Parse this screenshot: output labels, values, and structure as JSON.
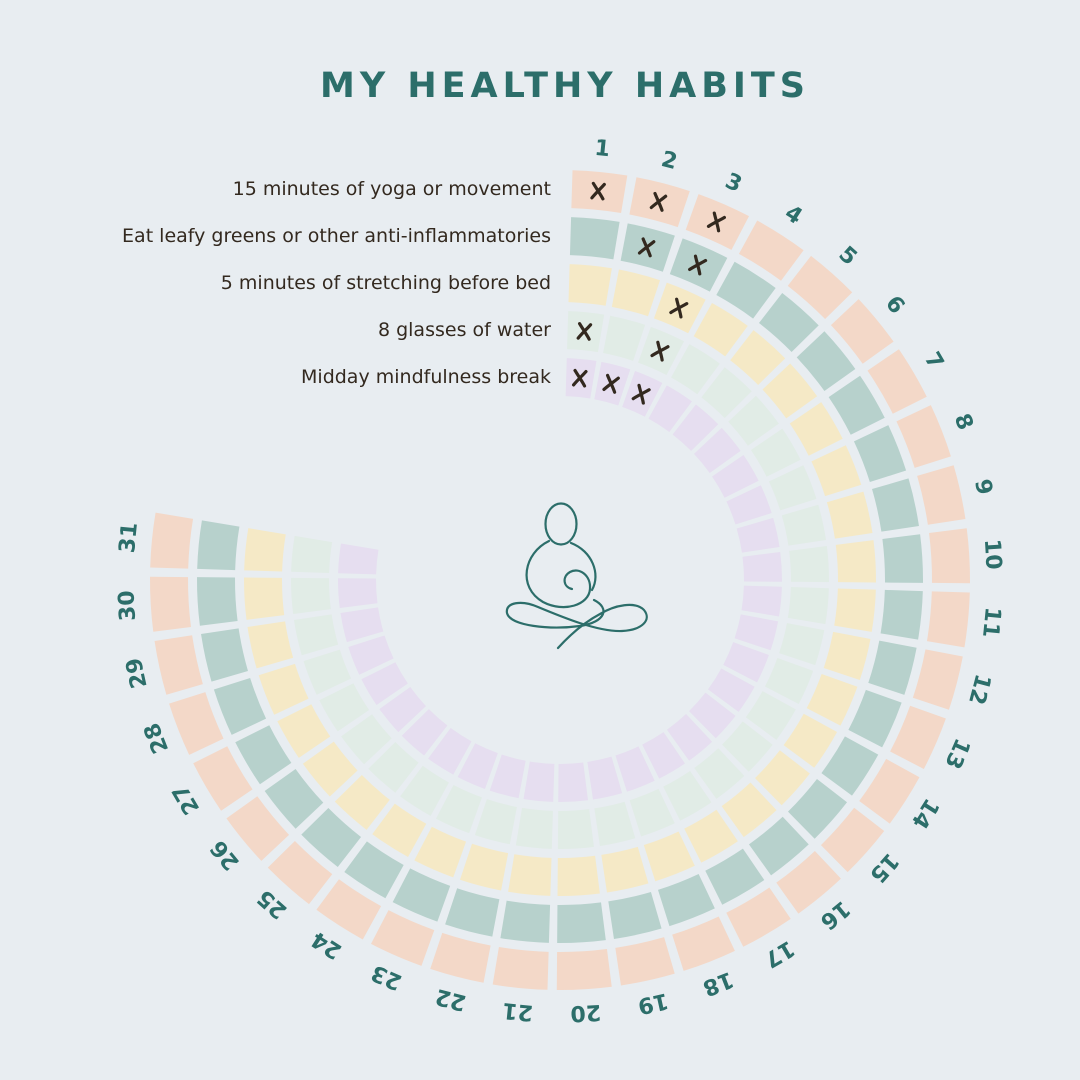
{
  "title": "MY HEALTHY HABITS",
  "colors": {
    "background": "#e8edf1",
    "accent_teal": "#2c6e6a",
    "ink": "#33291f"
  },
  "center_icon": {
    "name": "meditating-figure-line-art",
    "color": "#2c6e6a"
  },
  "chart_data": {
    "type": "heatmap",
    "subtype": "radial-habit-tracker",
    "title": "MY HEALTHY HABITS",
    "mark_symbol": "x",
    "legend_position": "left",
    "day_labels": [
      1,
      2,
      3,
      4,
      5,
      6,
      7,
      8,
      9,
      10,
      11,
      12,
      13,
      14,
      15,
      16,
      17,
      18,
      19,
      20,
      21,
      22,
      23,
      24,
      25,
      26,
      27,
      28,
      29,
      30,
      31
    ],
    "series": [
      {
        "name": "15 minutes of yoga or movement",
        "color": "#f3d8c8",
        "marked_days": [
          1,
          2,
          3
        ]
      },
      {
        "name": "Eat leafy greens or other anti-inflammatories",
        "color": "#b7d1cc",
        "marked_days": [
          2,
          3
        ]
      },
      {
        "name": "5 minutes of stretching before bed",
        "color": "#f5e9c6",
        "marked_days": [
          3
        ]
      },
      {
        "name": "8 glasses of water",
        "color": "#e1ece6",
        "marked_days": [
          1,
          3
        ]
      },
      {
        "name": "Midday mindfulness break",
        "color": "#e6def0",
        "marked_days": [
          1,
          2,
          3
        ]
      }
    ],
    "layout": {
      "center_x": 560,
      "center_y": 580,
      "arc_start_deg": 5.6,
      "step_deg": 9.0,
      "cell_arc_deg": 7.7,
      "outer_radius": 410,
      "ring_thickness": 38,
      "ring_pitch": 47,
      "number_radius": 433,
      "label_right_x": 551
    }
  }
}
